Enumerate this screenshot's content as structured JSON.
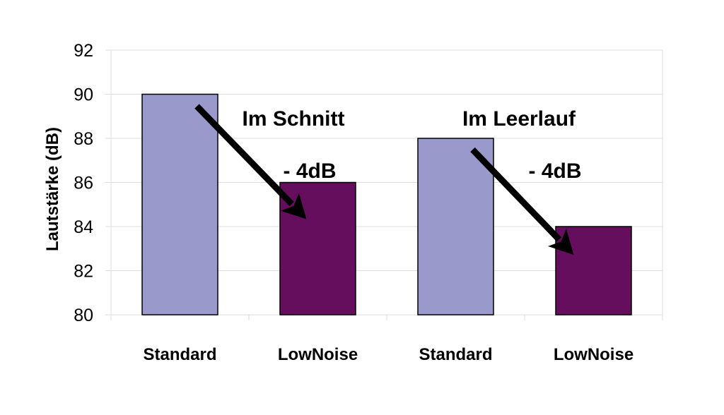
{
  "chart_data": {
    "type": "bar",
    "title": "",
    "xlabel": "",
    "ylabel": "Lautstärke (dB)",
    "ylim": [
      80,
      92
    ],
    "yticks": [
      80,
      82,
      84,
      86,
      88,
      90,
      92
    ],
    "grid": true,
    "categories": [
      "Standard",
      "LowNoise",
      "Standard",
      "LowNoise"
    ],
    "values": [
      90,
      86,
      88,
      84
    ],
    "colors": [
      "#9999cc",
      "#660e5e",
      "#9999cc",
      "#660e5e"
    ],
    "groups": [
      {
        "label": "Im Schnitt",
        "delta": "- 4dB"
      },
      {
        "label": "Im Leerlauf",
        "delta": "- 4dB"
      }
    ]
  }
}
